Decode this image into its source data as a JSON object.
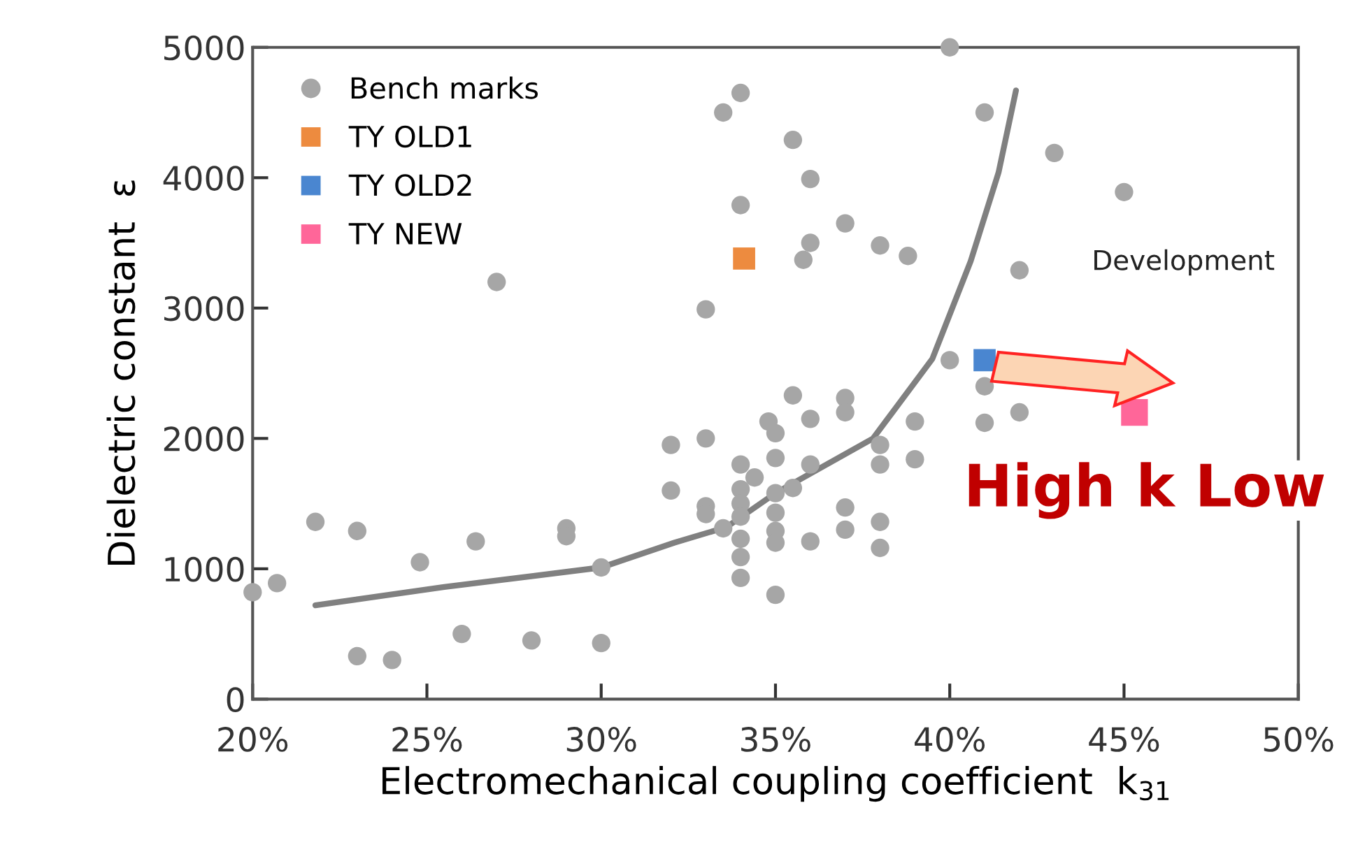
{
  "chart_data": {
    "type": "scatter",
    "xlabel": "Electromechanical coupling coefficient  k$_{31}$",
    "ylabel": "Dielectric constant  ε",
    "xlim": [
      20,
      50
    ],
    "ylim": [
      0,
      5000
    ],
    "xticks": [
      {
        "value": 20,
        "label": "20%"
      },
      {
        "value": 25,
        "label": "25%"
      },
      {
        "value": 30,
        "label": "30%"
      },
      {
        "value": 35,
        "label": "35%"
      },
      {
        "value": 40,
        "label": "40%"
      },
      {
        "value": 45,
        "label": "45%"
      },
      {
        "value": 50,
        "label": "50%"
      }
    ],
    "yticks": [
      0,
      1000,
      2000,
      3000,
      4000,
      5000
    ],
    "grid": false,
    "legend": "top left",
    "annotations": [
      "Development",
      "High k Low"
    ],
    "series": [
      {
        "name": "Bench marks",
        "marker": "circle",
        "color": "#a6a6a6",
        "x": [
          21.8,
          23.0,
          20.7,
          20.0,
          24.8,
          26.4,
          29.0,
          29.0,
          30.0,
          23.0,
          24.0,
          26.0,
          28.0,
          30.0,
          27.0,
          32.0,
          32.0,
          33.0,
          33.0,
          33.5,
          34.0,
          34.0,
          33.0,
          33.0,
          33.5,
          34.0,
          34.4,
          34.0,
          34.0,
          34.0,
          34.0,
          34.0,
          34.0,
          34.8,
          35.0,
          35.0,
          35.0,
          35.0,
          35.0,
          35.0,
          35.0,
          35.5,
          35.5,
          40.0,
          36.0,
          37.0,
          36.0,
          35.8,
          38.0,
          38.8,
          41.0,
          43.0,
          45.0,
          42.0,
          40.0,
          41.0,
          42.0,
          41.0,
          37.0,
          37.0,
          36.0,
          39.0,
          38.0,
          36.0,
          38.0,
          39.0,
          35.5,
          37.0,
          37.0,
          38.0,
          38.0,
          36.0
        ],
        "values": [
          1360,
          1290,
          890,
          820,
          1050,
          1210,
          1310,
          1250,
          1010,
          330,
          300,
          500,
          450,
          430,
          3200,
          1950,
          1600,
          2000,
          2990,
          4500,
          4650,
          3790,
          1480,
          1420,
          1310,
          1800,
          1700,
          1610,
          1500,
          1400,
          1230,
          1090,
          930,
          2130,
          2040,
          1850,
          1580,
          1430,
          1290,
          1200,
          800,
          2330,
          4290,
          5000,
          3990,
          3650,
          3500,
          3370,
          3480,
          3400,
          4500,
          4190,
          3890,
          3290,
          2600,
          2400,
          2200,
          2120,
          2310,
          2200,
          2150,
          2130,
          1950,
          1800,
          1800,
          1840,
          1620,
          1470,
          1300,
          1360,
          1160,
          1210
        ]
      },
      {
        "name": "TY OLD1",
        "marker": "square",
        "color": "#ed8b3f",
        "x": [
          34.1
        ],
        "values": [
          3380
        ]
      },
      {
        "name": "TY OLD2",
        "marker": "square",
        "color": "#4a86d0",
        "x": [
          41.0
        ],
        "values": [
          2600
        ]
      },
      {
        "name": "TY NEW",
        "marker": "square",
        "color": "#ff6699",
        "x": [
          45.3
        ],
        "values": [
          2200
        ]
      },
      {
        "type": "line",
        "color": "#808080",
        "line_style": "solid",
        "x": [
          21.8,
          25.5,
          30.0,
          32.1,
          33.6,
          35.0,
          37.8,
          39.5,
          40.6,
          41.4,
          41.9
        ],
        "values": [
          720,
          860,
          1010,
          1200,
          1320,
          1580,
          2000,
          2610,
          3360,
          4040,
          4670
        ]
      }
    ]
  }
}
